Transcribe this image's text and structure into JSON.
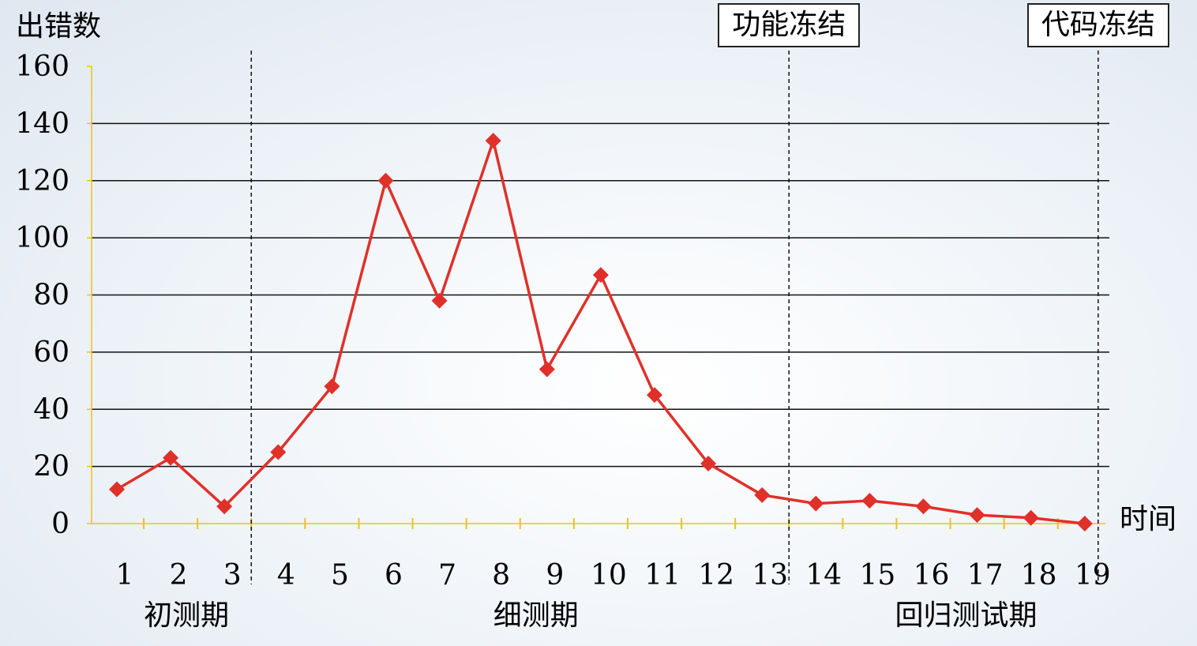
{
  "chart_data": {
    "type": "line",
    "ylabel": "出错数",
    "xlabel": "时间",
    "ylim": [
      0,
      160
    ],
    "yticks": [
      0,
      20,
      40,
      60,
      80,
      100,
      120,
      140,
      160
    ],
    "categories": [
      "1",
      "2",
      "3",
      "4",
      "5",
      "6",
      "7",
      "8",
      "9",
      "10",
      "11",
      "12",
      "13",
      "14",
      "15",
      "16",
      "17",
      "18",
      "19"
    ],
    "series": [
      {
        "values": [
          12,
          23,
          6,
          25,
          48,
          120,
          78,
          134,
          54,
          87,
          45,
          21,
          10,
          7,
          8,
          6,
          3,
          2,
          0
        ],
        "color": "#e0302a"
      }
    ],
    "phases": [
      {
        "label": "初测期",
        "from": 1,
        "to": 3
      },
      {
        "label": "细测期",
        "from": 4,
        "to": 13
      },
      {
        "label": "回归测试期",
        "from": 14,
        "to": 19
      }
    ],
    "markers": [
      {
        "label": "功能冻结",
        "at": 13.5
      },
      {
        "label": "代码冻结",
        "at": 19.25
      }
    ],
    "phase_divider_at": 3.5,
    "grid": true
  }
}
